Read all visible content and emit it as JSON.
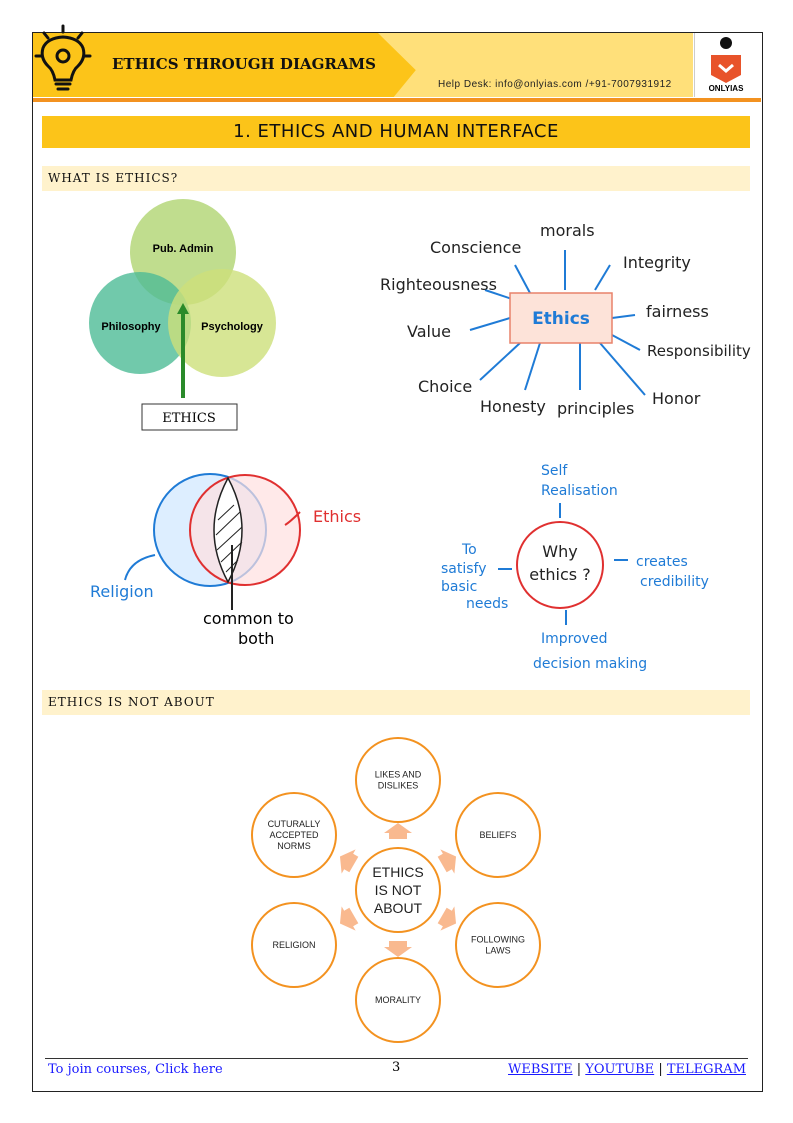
{
  "header": {
    "title": "ETHICS THROUGH DIAGRAMS",
    "helpdesk": "Help Desk: info@onlyias.com /+91-7007931912",
    "logo_text": "ONLYIAS"
  },
  "chapter_title": "1. ETHICS AND HUMAN INTERFACE",
  "sections": [
    {
      "title": "WHAT IS ETHICS?"
    },
    {
      "title": "ETHICS IS NOT ABOUT"
    }
  ],
  "venn1": {
    "top": "Pub. Admin",
    "left": "Philosophy",
    "right": "Psychology",
    "box": "ETHICS"
  },
  "mindmap": {
    "center": "Ethics",
    "words": [
      "Conscience",
      "morals",
      "Integrity",
      "Righteousness",
      "fairness",
      "Value",
      "Responsibility",
      "Choice",
      "Honesty",
      "principles",
      "Honor"
    ]
  },
  "venn2": {
    "left": "Religion",
    "right": "Ethics",
    "overlap": "common to",
    "overlap2": "both"
  },
  "why": {
    "center1": "Why",
    "center2": "ethics ?",
    "top1": "Self",
    "top2": "Realisation",
    "left1": "To",
    "left2": "satisfy",
    "left3": "basic",
    "left4": "needs",
    "right1": "creates",
    "right2": "credibility",
    "bottom1": "Improved",
    "bottom2": "decision making"
  },
  "not_about": {
    "center": [
      "ETHICS",
      "IS NOT",
      "ABOUT"
    ],
    "items": [
      [
        "LIKES AND",
        "DISLIKES"
      ],
      [
        "BELIEFS"
      ],
      [
        "FOLLOWING",
        "LAWS"
      ],
      [
        "MORALITY"
      ],
      [
        "RELIGION"
      ],
      [
        "CUTURALLY",
        "ACCEPTED",
        "NORMS"
      ]
    ]
  },
  "footer": {
    "join": "To join courses, Click here",
    "page": "3",
    "website": "WEBSITE",
    "youtube": "YOUTUBE",
    "telegram": "TELEGRAM",
    "sep": "|"
  },
  "colors": {
    "yellow": "#fcc419",
    "orange": "#f39220",
    "blue": "#1f7bd6"
  }
}
